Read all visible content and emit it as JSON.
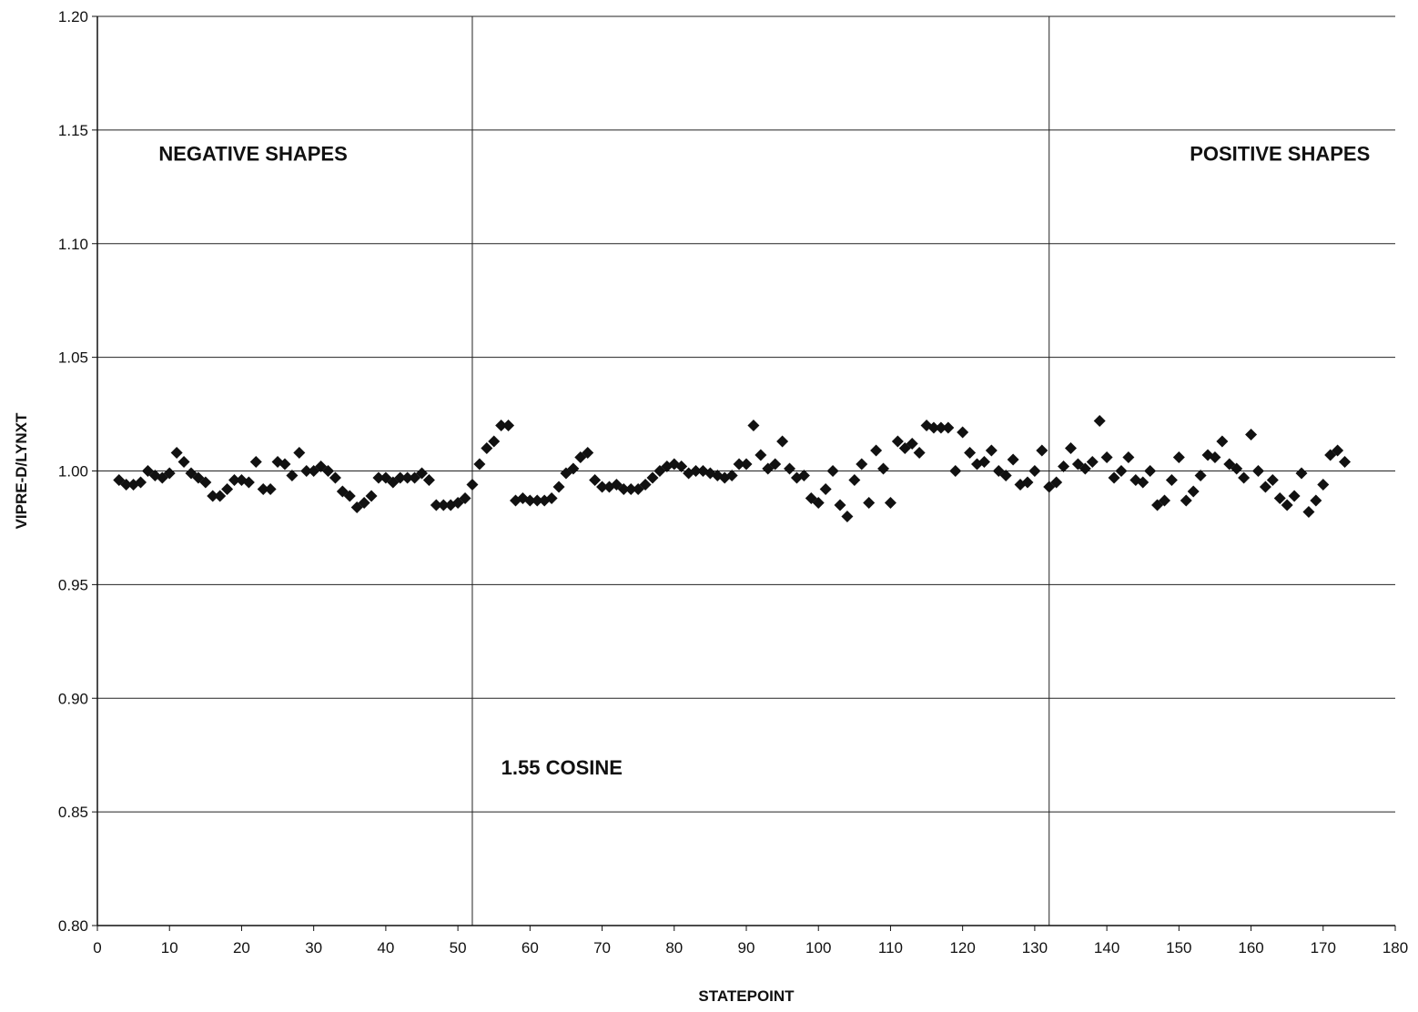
{
  "chart_data": {
    "type": "scatter",
    "title": "",
    "xlabel": "STATEPOINT",
    "ylabel": "VIPRE-D/LYNXT",
    "xlim": [
      0,
      180
    ],
    "ylim": [
      0.8,
      1.2
    ],
    "grid": "horizontal",
    "x_ticks": [
      0,
      10,
      20,
      30,
      40,
      50,
      60,
      70,
      80,
      90,
      100,
      110,
      120,
      130,
      140,
      150,
      160,
      170,
      180
    ],
    "x_tick_labels": [
      "0",
      "10",
      "20",
      "30",
      "40",
      "50",
      "60",
      "70",
      "80",
      "90",
      "100",
      "110",
      "120",
      "130",
      "140",
      "150",
      "160",
      "170",
      "180"
    ],
    "y_ticks": [
      0.8,
      0.85,
      0.9,
      0.95,
      1.0,
      1.05,
      1.1,
      1.15,
      1.2
    ],
    "y_tick_labels": [
      "0.80",
      "0.85",
      "0.90",
      "0.95",
      "1.00",
      "1.05",
      "1.10",
      "1.15",
      "1.20"
    ],
    "separators": [
      52,
      132
    ],
    "annotations": [
      {
        "text": "NEGATIVE SHAPES",
        "x": 8.5,
        "y": 1.1365
      },
      {
        "text": "1.55 COSINE",
        "x": 56,
        "y": 0.8665
      },
      {
        "text": "POSITIVE SHAPES",
        "x": 151.5,
        "y": 1.1365
      }
    ],
    "marker": "diamond",
    "marker_color": "#111111",
    "series": [
      {
        "x": [
          3,
          4,
          5,
          6,
          7,
          8,
          9,
          10,
          11,
          12,
          13,
          14,
          15,
          16,
          17,
          18,
          19,
          20,
          21,
          22,
          23,
          24,
          25,
          26,
          27,
          28,
          29,
          30,
          31,
          32,
          33,
          34,
          35,
          36,
          37,
          38,
          39,
          40,
          41,
          42,
          43,
          44,
          45,
          46,
          47,
          48,
          49,
          50,
          51,
          52,
          53,
          54,
          55,
          56,
          57,
          58,
          59,
          60,
          61,
          62,
          63,
          64,
          65,
          66,
          67,
          68,
          69,
          70,
          71,
          72,
          73,
          74,
          75,
          76,
          77,
          78,
          79,
          80,
          81,
          82,
          83,
          84,
          85,
          86,
          87,
          88,
          89,
          90,
          91,
          92,
          93,
          94,
          95,
          96,
          97,
          98,
          99,
          100,
          101,
          102,
          103,
          104,
          105,
          106,
          107,
          108,
          109,
          110,
          111,
          112,
          113,
          114,
          115,
          116,
          117,
          118,
          119,
          120,
          121,
          122,
          123,
          124,
          125,
          126,
          127,
          128,
          129,
          130,
          131,
          132,
          133,
          134,
          135,
          136,
          137,
          138,
          139,
          140,
          141,
          142,
          143,
          144,
          145,
          146,
          147,
          148,
          149,
          150,
          151,
          152,
          153,
          154,
          155,
          156,
          157,
          158,
          159,
          160,
          161,
          162,
          163,
          164,
          165,
          166,
          167,
          168,
          169,
          170,
          171,
          172,
          173
        ],
        "y": [
          0.996,
          0.994,
          0.994,
          0.995,
          1.0,
          0.998,
          0.997,
          0.999,
          1.008,
          1.004,
          0.999,
          0.997,
          0.995,
          0.989,
          0.989,
          0.992,
          0.996,
          0.996,
          0.995,
          1.004,
          0.992,
          0.992,
          1.004,
          1.003,
          0.998,
          1.008,
          1.0,
          1.0,
          1.002,
          1.0,
          0.997,
          0.991,
          0.989,
          0.984,
          0.986,
          0.989,
          0.997,
          0.997,
          0.995,
          0.997,
          0.997,
          0.997,
          0.999,
          0.996,
          0.985,
          0.985,
          0.985,
          0.986,
          0.988,
          0.994,
          1.003,
          1.01,
          1.013,
          1.02,
          1.02,
          0.987,
          0.988,
          0.987,
          0.987,
          0.987,
          0.988,
          0.993,
          0.999,
          1.001,
          1.006,
          1.008,
          0.996,
          0.993,
          0.993,
          0.994,
          0.992,
          0.992,
          0.992,
          0.994,
          0.997,
          1.0,
          1.002,
          1.003,
          1.002,
          0.999,
          1.0,
          1.0,
          0.999,
          0.998,
          0.997,
          0.998,
          1.003,
          1.003,
          1.02,
          1.007,
          1.001,
          1.003,
          1.013,
          1.001,
          0.997,
          0.998,
          0.988,
          0.986,
          0.992,
          1.0,
          0.985,
          0.98,
          0.996,
          1.003,
          0.986,
          1.009,
          1.001,
          0.986,
          1.013,
          1.01,
          1.012,
          1.008,
          1.02,
          1.019,
          1.019,
          1.019,
          1.0,
          1.017,
          1.008,
          1.003,
          1.004,
          1.009,
          1.0,
          0.998,
          1.005,
          0.994,
          0.995,
          1.0,
          1.009,
          0.993,
          0.995,
          1.002,
          1.01,
          1.003,
          1.001,
          1.004,
          1.022,
          1.006,
          0.997,
          1.0,
          1.006,
          0.996,
          0.995,
          1.0,
          0.985,
          0.987,
          0.996,
          1.006,
          0.987,
          0.991,
          0.998,
          1.007,
          1.006,
          1.013,
          1.003,
          1.001,
          0.997,
          1.016,
          1.0,
          0.993,
          0.996,
          0.988,
          0.985,
          0.989,
          0.999,
          0.982,
          0.987,
          0.994,
          1.007,
          1.009,
          1.004
        ]
      }
    ]
  }
}
